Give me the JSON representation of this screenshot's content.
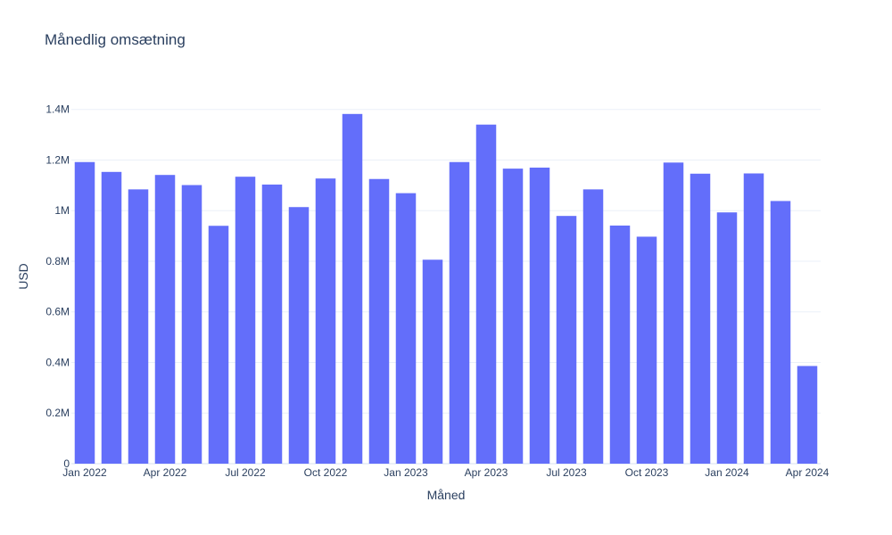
{
  "chart_data": {
    "type": "bar",
    "title": "Månedlig omsætning",
    "xlabel": "Måned",
    "ylabel": "USD",
    "bar_color": "#636efa",
    "grid": true,
    "x": [
      "2022-01",
      "2022-02",
      "2022-03",
      "2022-04",
      "2022-05",
      "2022-06",
      "2022-07",
      "2022-08",
      "2022-09",
      "2022-10",
      "2022-11",
      "2022-12",
      "2023-01",
      "2023-02",
      "2023-03",
      "2023-04",
      "2023-05",
      "2023-06",
      "2023-07",
      "2023-08",
      "2023-09",
      "2023-10",
      "2023-11",
      "2023-12",
      "2024-01",
      "2024-02",
      "2024-03",
      "2024-04"
    ],
    "values": [
      1192000,
      1153000,
      1084000,
      1141000,
      1101000,
      940000,
      1134000,
      1103000,
      1014000,
      1127000,
      1382000,
      1125000,
      1069000,
      806000,
      1192000,
      1340000,
      1166000,
      1170000,
      979000,
      1084000,
      941000,
      897000,
      1190000,
      1146000,
      993000,
      1147000,
      1038000,
      386000
    ],
    "ylim": [
      0,
      1480000
    ],
    "yticks": [
      {
        "value": 0,
        "label": "0"
      },
      {
        "value": 200000,
        "label": "0.2M"
      },
      {
        "value": 400000,
        "label": "0.4M"
      },
      {
        "value": 600000,
        "label": "0.6M"
      },
      {
        "value": 800000,
        "label": "0.8M"
      },
      {
        "value": 1000000,
        "label": "1M"
      },
      {
        "value": 1200000,
        "label": "1.2M"
      },
      {
        "value": 1400000,
        "label": "1.4M"
      }
    ],
    "xticks": [
      {
        "value": "2022-01",
        "label": "Jan 2022"
      },
      {
        "value": "2022-04",
        "label": "Apr 2022"
      },
      {
        "value": "2022-07",
        "label": "Jul 2022"
      },
      {
        "value": "2022-10",
        "label": "Oct 2022"
      },
      {
        "value": "2023-01",
        "label": "Jan 2023"
      },
      {
        "value": "2023-04",
        "label": "Apr 2023"
      },
      {
        "value": "2023-07",
        "label": "Jul 2023"
      },
      {
        "value": "2023-10",
        "label": "Oct 2023"
      },
      {
        "value": "2024-01",
        "label": "Jan 2024"
      },
      {
        "value": "2024-04",
        "label": "Apr 2024"
      }
    ]
  }
}
